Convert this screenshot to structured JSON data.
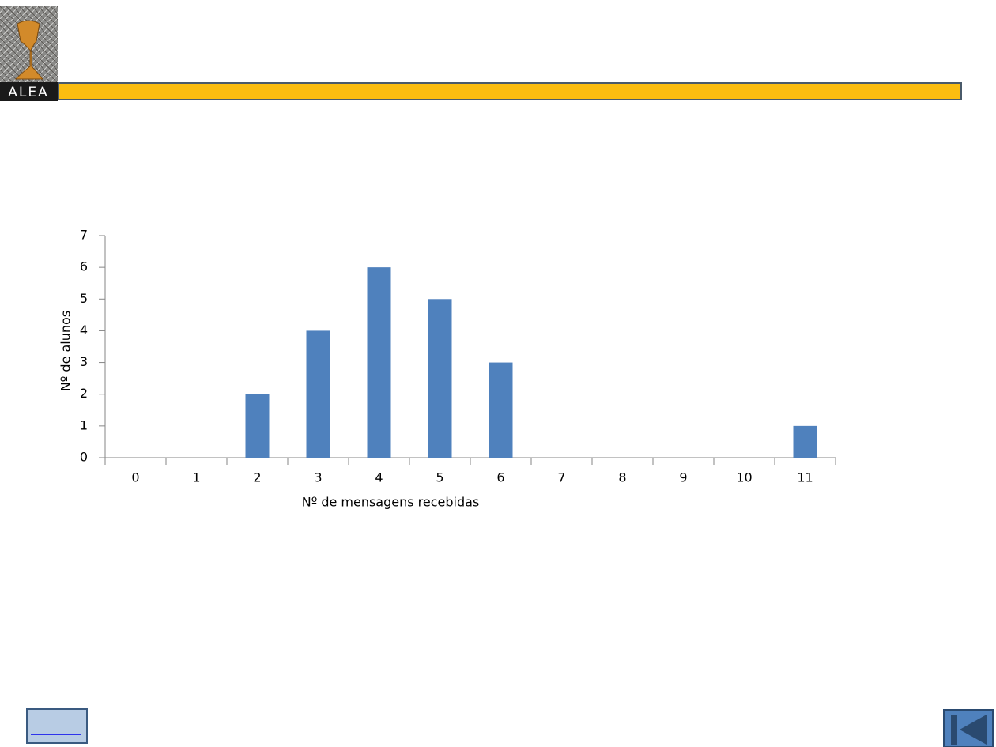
{
  "logo": {
    "text": "ALEA"
  },
  "chart_data": {
    "type": "bar",
    "categories": [
      "0",
      "1",
      "2",
      "3",
      "4",
      "5",
      "6",
      "7",
      "8",
      "9",
      "10",
      "11"
    ],
    "values": [
      0,
      0,
      2,
      4,
      6,
      5,
      3,
      0,
      0,
      0,
      0,
      1
    ],
    "color": "#4f81bd",
    "x_label": "Nº de mensagens recebidas",
    "y_label": "Nº de alunos",
    "ylim": [
      0,
      7
    ],
    "yticks": [
      0,
      1,
      2,
      3,
      4,
      5,
      6,
      7
    ],
    "grid": false
  }
}
